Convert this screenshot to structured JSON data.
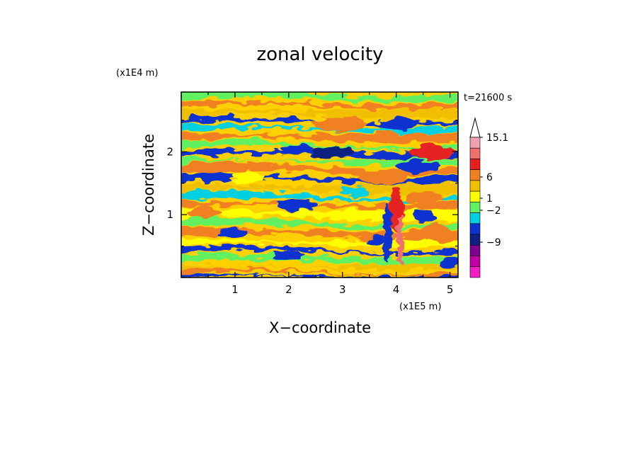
{
  "chart_data": {
    "type": "heatmap",
    "title": "zonal velocity",
    "xlabel": "X−coordinate",
    "ylabel": "Z−coordinate",
    "x_unit": "(x1E5 m)",
    "y_unit": "(x1E4 m)",
    "time_label": "t=21600 s",
    "xlim": [
      0,
      5.15
    ],
    "ylim": [
      0,
      2.95
    ],
    "x_ticks": [
      1,
      2,
      3,
      4,
      5
    ],
    "y_ticks": [
      1,
      2
    ],
    "colorbar": {
      "labels": [
        "15.1",
        "6",
        "1",
        "−2",
        "−9"
      ],
      "colors": [
        "#f0a0b0",
        "#f07070",
        "#e62020",
        "#f08020",
        "#f0c000",
        "#ffff00",
        "#60f060",
        "#00d0e0",
        "#1030d0",
        "#102080",
        "#800090",
        "#c000a0",
        "#f020c0"
      ]
    }
  }
}
